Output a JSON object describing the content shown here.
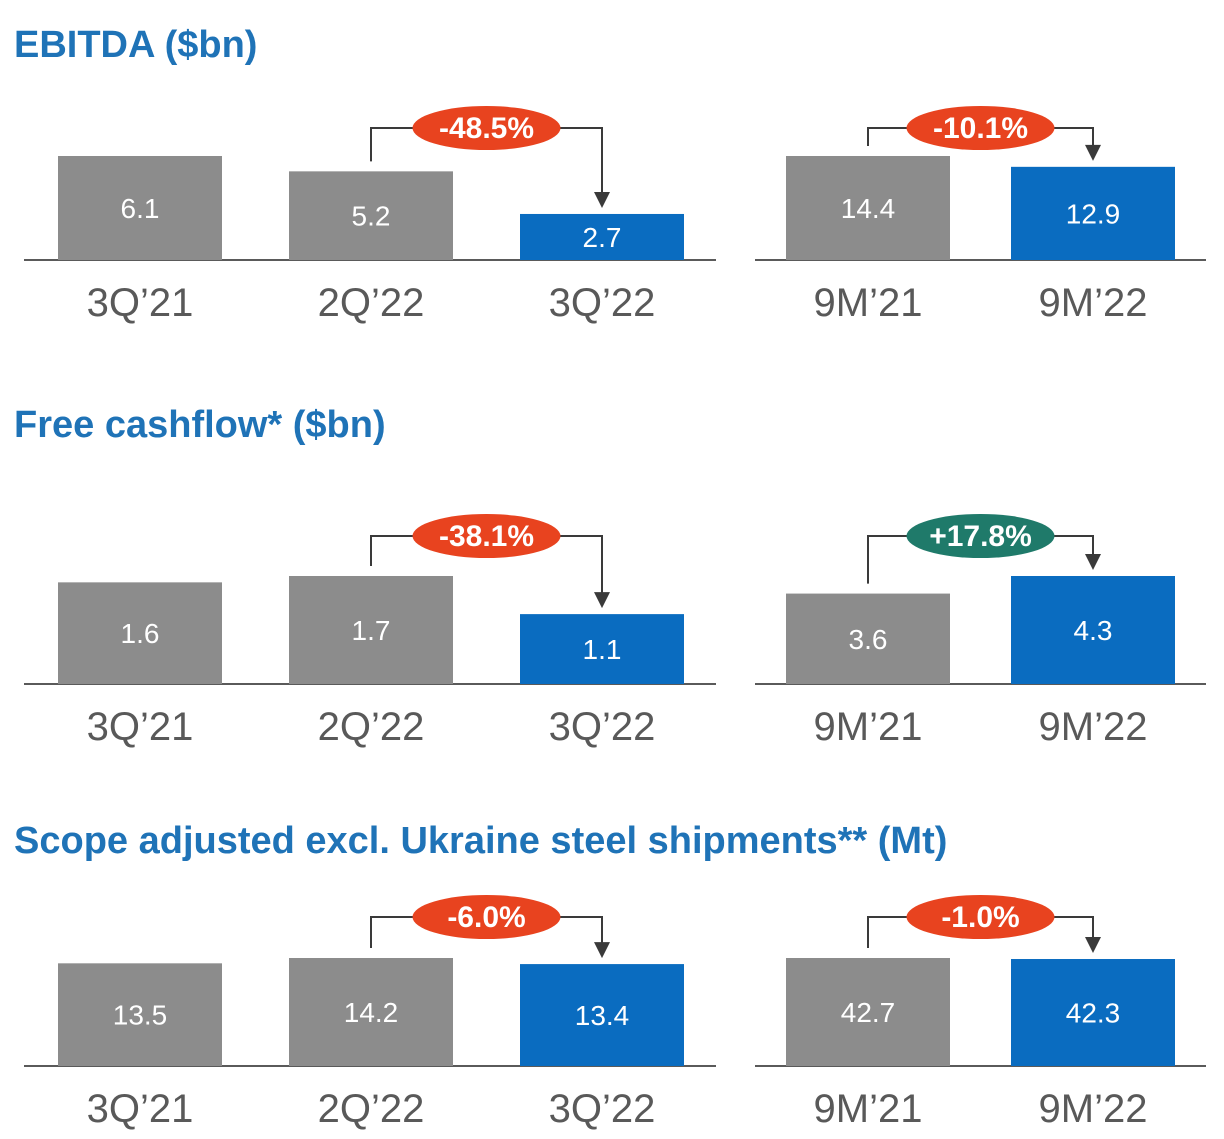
{
  "colors": {
    "title": "#1f73b7",
    "bar_prior": "#8c8c8c",
    "bar_current": "#0a6cc0",
    "badge_decrease": "#e8431f",
    "badge_increase": "#1f7a6a",
    "baseline": "#5a5a5a",
    "tick_label": "#595959",
    "value_label": "#ffffff"
  },
  "chart_data": [
    {
      "type": "bar",
      "title": "EBITDA ($bn)",
      "groups": [
        {
          "categories": [
            "3Q’21",
            "2Q’22",
            "3Q’22"
          ],
          "values": [
            6.1,
            5.2,
            2.7
          ],
          "value_labels": [
            "6.1",
            "5.2",
            "2.7"
          ],
          "highlight_index": 2,
          "change": {
            "from_index": 1,
            "to_index": 2,
            "label": "-48.5%",
            "direction": "decrease"
          }
        },
        {
          "categories": [
            "9M’21",
            "9M’22"
          ],
          "values": [
            14.4,
            12.9
          ],
          "value_labels": [
            "14.4",
            "12.9"
          ],
          "highlight_index": 1,
          "change": {
            "from_index": 0,
            "to_index": 1,
            "label": "-10.1%",
            "direction": "decrease"
          }
        }
      ]
    },
    {
      "type": "bar",
      "title": "Free cashflow* ($bn)",
      "groups": [
        {
          "categories": [
            "3Q’21",
            "2Q’22",
            "3Q’22"
          ],
          "values": [
            1.6,
            1.7,
            1.1
          ],
          "value_labels": [
            "1.6",
            "1.7",
            "1.1"
          ],
          "highlight_index": 2,
          "change": {
            "from_index": 1,
            "to_index": 2,
            "label": "-38.1%",
            "direction": "decrease"
          }
        },
        {
          "categories": [
            "9M’21",
            "9M’22"
          ],
          "values": [
            3.6,
            4.3
          ],
          "value_labels": [
            "3.6",
            "4.3"
          ],
          "highlight_index": 1,
          "change": {
            "from_index": 0,
            "to_index": 1,
            "label": "+17.8%",
            "direction": "increase"
          }
        }
      ]
    },
    {
      "type": "bar",
      "title": "Scope adjusted excl. Ukraine steel shipments** (Mt)",
      "groups": [
        {
          "categories": [
            "3Q’21",
            "2Q’22",
            "3Q’22"
          ],
          "values": [
            13.5,
            14.2,
            13.4
          ],
          "value_labels": [
            "13.5",
            "14.2",
            "13.4"
          ],
          "highlight_index": 2,
          "change": {
            "from_index": 1,
            "to_index": 2,
            "label": "-6.0%",
            "direction": "decrease"
          }
        },
        {
          "categories": [
            "9M’21",
            "9M’22"
          ],
          "values": [
            42.7,
            42.3
          ],
          "value_labels": [
            "42.7",
            "42.3"
          ],
          "highlight_index": 1,
          "change": {
            "from_index": 0,
            "to_index": 1,
            "label": "-1.0%",
            "direction": "decrease"
          }
        }
      ]
    }
  ]
}
